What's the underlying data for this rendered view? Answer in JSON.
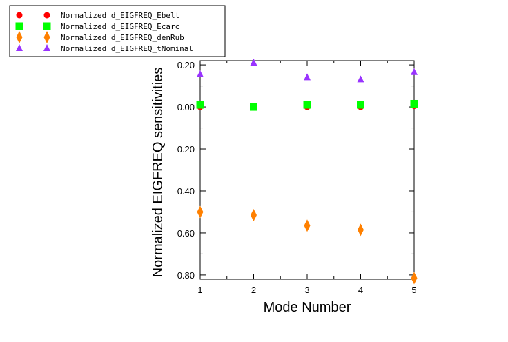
{
  "chart_data": {
    "type": "scatter",
    "title": "",
    "xlabel": "Mode Number",
    "ylabel": "Normalized EIGFREQ sensitivities",
    "x": [
      1,
      2,
      3,
      4,
      5
    ],
    "xlim": [
      1,
      5
    ],
    "ylim": [
      -0.82,
      0.22
    ],
    "xticks": [
      "1",
      "2",
      "3",
      "4",
      "5"
    ],
    "yticks": [
      {
        "value": 0.2,
        "label": "0.20"
      },
      {
        "value": 0.0,
        "label": "0.00"
      },
      {
        "value": -0.2,
        "label": "-0.20"
      },
      {
        "value": -0.4,
        "label": "-0.40"
      },
      {
        "value": -0.6,
        "label": "-0.60"
      },
      {
        "value": -0.8,
        "label": "-0.80"
      }
    ],
    "grid": false,
    "legend_position": "top-left, outside plot",
    "series": [
      {
        "name": "Normalized d_EIGFREQ_Ebelt",
        "marker": "circle",
        "color": "#ff0000",
        "values": [
          0.0,
          0.0,
          0.0,
          0.0,
          0.005
        ]
      },
      {
        "name": "Normalized d_EIGFREQ_Ecarc",
        "marker": "square",
        "color": "#00ff00",
        "values": [
          0.01,
          0.0,
          0.01,
          0.01,
          0.015
        ]
      },
      {
        "name": "Normalized d_EIGFREQ_denRub",
        "marker": "diamond",
        "color": "#ff8000",
        "values": [
          -0.5,
          -0.515,
          -0.565,
          -0.585,
          -0.815
        ]
      },
      {
        "name": "Normalized d_EIGFREQ_tNominal",
        "marker": "triangle",
        "color": "#9933ff",
        "values": [
          0.155,
          0.21,
          0.14,
          0.13,
          0.165
        ]
      }
    ]
  }
}
